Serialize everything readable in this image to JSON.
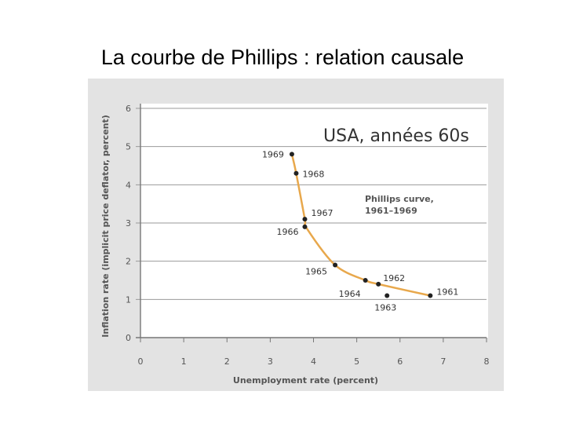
{
  "slide": {
    "title": "La courbe de Phillips : relation causale"
  },
  "chart_data": {
    "type": "scatter",
    "title": "USA, années 60s",
    "xlabel": "Unemployment rate (percent)",
    "ylabel": "Inflation rate (implicit price deflator, percent)",
    "xlim": [
      0,
      8
    ],
    "ylim": [
      0,
      6
    ],
    "x_ticks": [
      0,
      1,
      2,
      3,
      4,
      5,
      6,
      7,
      8
    ],
    "y_ticks": [
      0,
      1,
      2,
      3,
      4,
      5,
      6
    ],
    "grid": "horizontal",
    "annotation": [
      "Phillips curve,",
      "1961–1969"
    ],
    "curve_color": "#e8a84c",
    "point_color": "#222222",
    "points": [
      {
        "label": "1961",
        "x": 6.7,
        "y": 1.1
      },
      {
        "label": "1962",
        "x": 5.5,
        "y": 1.4
      },
      {
        "label": "1963",
        "x": 5.7,
        "y": 1.1
      },
      {
        "label": "1964",
        "x": 5.2,
        "y": 1.5
      },
      {
        "label": "1965",
        "x": 4.5,
        "y": 1.9
      },
      {
        "label": "1966",
        "x": 3.8,
        "y": 2.9
      },
      {
        "label": "1967",
        "x": 3.8,
        "y": 3.1
      },
      {
        "label": "1968",
        "x": 3.6,
        "y": 4.3
      },
      {
        "label": "1969",
        "x": 3.5,
        "y": 4.8
      }
    ]
  }
}
